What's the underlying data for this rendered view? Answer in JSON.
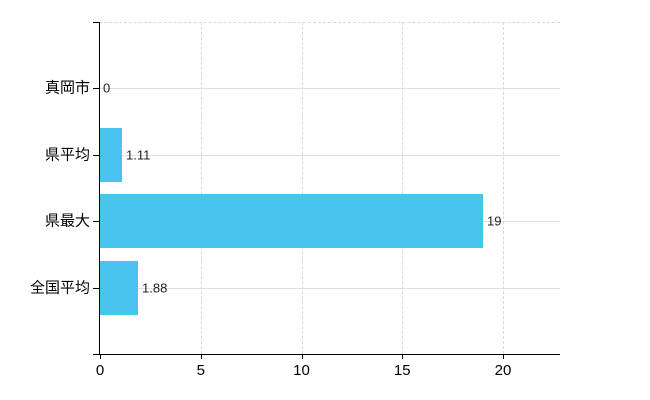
{
  "chart_data": {
    "type": "bar",
    "orientation": "horizontal",
    "title": "",
    "categories": [
      "真岡市",
      "県平均",
      "県最大",
      "全国平均"
    ],
    "values": [
      0,
      1.11,
      19,
      1.88
    ],
    "value_labels": [
      "0",
      "1.11",
      "19",
      "1.88"
    ],
    "x_ticks": [
      0,
      5,
      10,
      15,
      20
    ],
    "x_tick_labels": [
      "0",
      "5",
      "10",
      "15",
      "20"
    ],
    "xlim": [
      0,
      22.8
    ],
    "grid": {
      "vertical": "dashed",
      "horizontal": "solid",
      "top_border": "dashed"
    },
    "legend": "none",
    "colors": {
      "bar": "#49C4EF",
      "axis": "#000000",
      "grid_vertical": "#d8d8d8",
      "grid_horizontal": "#dce2d9",
      "category_text": "#000000",
      "value_text": "#222222",
      "background": "#ffffff"
    }
  }
}
